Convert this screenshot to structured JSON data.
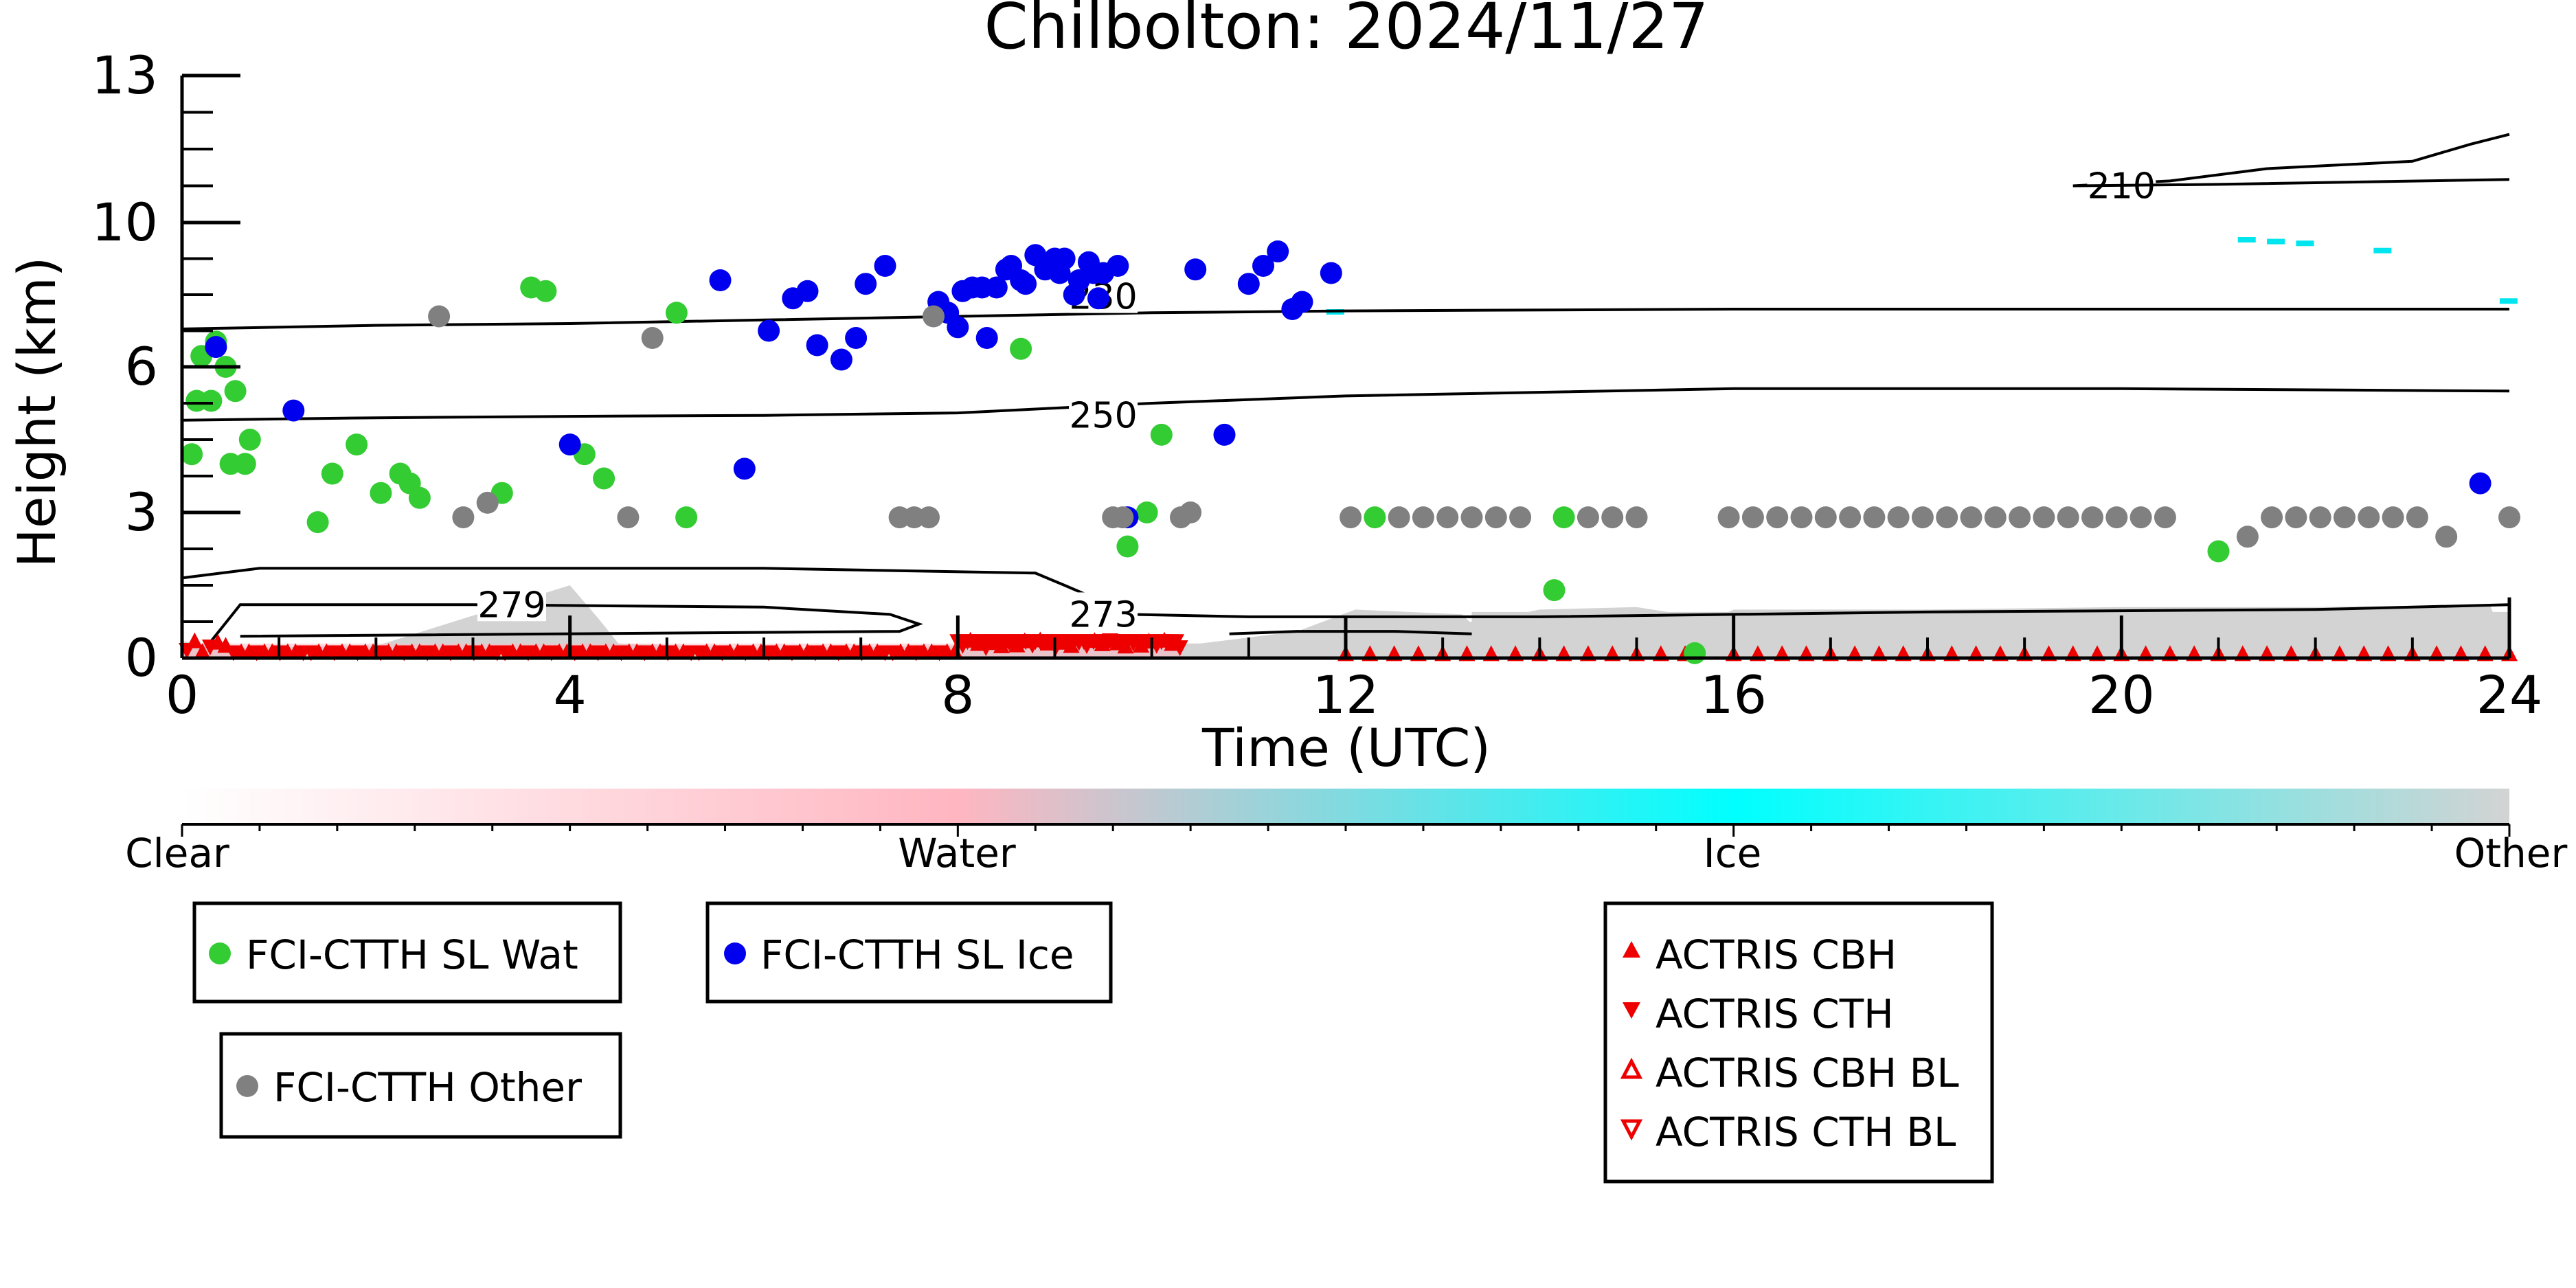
{
  "chart_data": {
    "type": "scatter",
    "title": "Chilbolton: 2024/11/27",
    "xlabel": "Time (UTC)",
    "ylabel": "Height (km)",
    "xlim": [
      0,
      24
    ],
    "ylim": [
      0,
      13
    ],
    "x_ticks": [
      0,
      4,
      8,
      12,
      16,
      20,
      24
    ],
    "y_ticks": [
      0,
      3,
      6,
      10,
      13
    ],
    "y_tick_labels": [
      "0",
      "3",
      "6",
      "10",
      "13"
    ],
    "y_tick_positions": [
      0,
      3,
      6,
      10,
      13
    ],
    "y_scale_note": "non-uniform axis; 3 km and 6 km labels sit at one quarter spacing",
    "colorbar": {
      "labels": [
        "Clear",
        "Water",
        "Ice",
        "Other"
      ],
      "positions": [
        0,
        0.333,
        0.667,
        1.0
      ],
      "colors": {
        "clear": "#ffffff",
        "water": "#ffb6c1",
        "ice": "#00ffff",
        "other": "#d3d3d3"
      }
    },
    "contours": [
      {
        "label": "210",
        "label_x": 20.0,
        "label_y": 10.75,
        "points": [
          [
            19.5,
            10.75
          ],
          [
            20.5,
            10.85
          ],
          [
            21.5,
            11.1
          ],
          [
            23.0,
            11.25
          ],
          [
            23.6,
            11.6
          ],
          [
            24.0,
            11.8
          ]
        ]
      },
      {
        "label": "210",
        "show_label": false,
        "points": [
          [
            19.5,
            10.75
          ],
          [
            21.0,
            10.78
          ],
          [
            24.0,
            10.88
          ]
        ]
      },
      {
        "label": "230",
        "label_x": 9.5,
        "label_y": 7.95,
        "points": [
          [
            0,
            7.05
          ],
          [
            2,
            7.15
          ],
          [
            4,
            7.2
          ],
          [
            6,
            7.3
          ],
          [
            8,
            7.4
          ],
          [
            10,
            7.5
          ],
          [
            12,
            7.55
          ],
          [
            16,
            7.6
          ],
          [
            20,
            7.6
          ],
          [
            24,
            7.6
          ]
        ]
      },
      {
        "label": "250",
        "label_x": 9.5,
        "label_y": 5.0,
        "points": [
          [
            0,
            4.9
          ],
          [
            2,
            4.95
          ],
          [
            4,
            4.98
          ],
          [
            6,
            5.0
          ],
          [
            8,
            5.05
          ],
          [
            9,
            5.15
          ],
          [
            10,
            5.25
          ],
          [
            12,
            5.4
          ],
          [
            16,
            5.55
          ],
          [
            20,
            5.55
          ],
          [
            24,
            5.5
          ]
        ]
      },
      {
        "label": "279",
        "label_x": 3.4,
        "label_y": 1.1,
        "points": [
          [
            0.3,
            0.35
          ],
          [
            0.6,
            1.1
          ],
          [
            3,
            1.1
          ],
          [
            6,
            1.05
          ],
          [
            7.3,
            0.9
          ],
          [
            7.6,
            0.7
          ],
          [
            7.4,
            0.55
          ],
          [
            0.6,
            0.45
          ]
        ]
      },
      {
        "label": "273",
        "label_x": 9.5,
        "label_y": 0.9,
        "points": [
          [
            0,
            1.65
          ],
          [
            0.8,
            1.85
          ],
          [
            3,
            1.85
          ],
          [
            6,
            1.85
          ],
          [
            8.8,
            1.75
          ],
          [
            9.1,
            1.5
          ],
          [
            9.8,
            0.9
          ],
          [
            11,
            0.85
          ],
          [
            14,
            0.85
          ],
          [
            18,
            0.95
          ],
          [
            22,
            1.0
          ],
          [
            24,
            1.1
          ]
        ]
      },
      {
        "label": "",
        "show_label": false,
        "points": [
          [
            10.8,
            0.5
          ],
          [
            11.5,
            0.55
          ],
          [
            12.5,
            0.55
          ],
          [
            13.3,
            0.5
          ]
        ]
      }
    ],
    "legend": {
      "fci": [
        {
          "label": "FCI-CTTH SL Wat",
          "color": "#33cc33",
          "marker": "circle"
        },
        {
          "label": "FCI-CTTH SL Ice",
          "color": "#0000ee",
          "marker": "circle"
        },
        {
          "label": "FCI-CTTH Other",
          "color": "#808080",
          "marker": "circle"
        }
      ],
      "actris": [
        {
          "label": "ACTRIS CBH",
          "color": "#ee0000",
          "marker": "triangle-up"
        },
        {
          "label": "ACTRIS CTH",
          "color": "#ee0000",
          "marker": "triangle-down"
        },
        {
          "label": "ACTRIS CBH BL",
          "color": "#ee0000",
          "marker": "triangle-up-open"
        },
        {
          "label": "ACTRIS CTH BL",
          "color": "#ee0000",
          "marker": "triangle-down-open"
        }
      ]
    },
    "series": [
      {
        "name": "FCI-CTTH SL Wat",
        "color": "#33cc33",
        "points": [
          [
            0.1,
            4.2
          ],
          [
            0.15,
            5.3
          ],
          [
            0.2,
            6.3
          ],
          [
            0.3,
            5.3
          ],
          [
            0.35,
            6.7
          ],
          [
            0.45,
            6.0
          ],
          [
            0.5,
            4.0
          ],
          [
            0.55,
            5.5
          ],
          [
            0.65,
            4.0
          ],
          [
            0.7,
            4.5
          ],
          [
            1.4,
            2.8
          ],
          [
            1.55,
            3.8
          ],
          [
            1.8,
            4.4
          ],
          [
            2.05,
            3.4
          ],
          [
            2.25,
            3.8
          ],
          [
            2.35,
            3.6
          ],
          [
            2.45,
            3.3
          ],
          [
            3.3,
            3.4
          ],
          [
            3.6,
            8.2
          ],
          [
            3.75,
            8.1
          ],
          [
            4.15,
            4.2
          ],
          [
            4.35,
            3.7
          ],
          [
            5.1,
            7.5
          ],
          [
            5.2,
            2.9
          ],
          [
            8.65,
            6.5
          ],
          [
            9.95,
            3.0
          ],
          [
            10.1,
            4.6
          ],
          [
            9.75,
            2.3
          ],
          [
            12.3,
            2.9
          ],
          [
            14.15,
            1.4
          ],
          [
            14.25,
            2.9
          ],
          [
            15.6,
            0.1
          ],
          [
            21.0,
            2.2
          ]
        ]
      },
      {
        "name": "FCI-CTTH SL Ice",
        "color": "#0000ee",
        "points": [
          [
            0.35,
            6.55
          ],
          [
            1.15,
            5.1
          ],
          [
            4.0,
            4.4
          ],
          [
            5.55,
            8.4
          ],
          [
            5.8,
            3.9
          ],
          [
            6.05,
            7.0
          ],
          [
            6.3,
            7.9
          ],
          [
            6.45,
            8.1
          ],
          [
            6.55,
            6.6
          ],
          [
            6.8,
            6.2
          ],
          [
            6.95,
            6.8
          ],
          [
            7.05,
            8.3
          ],
          [
            7.25,
            8.8
          ],
          [
            7.8,
            7.8
          ],
          [
            7.9,
            7.5
          ],
          [
            8.0,
            7.1
          ],
          [
            8.05,
            8.1
          ],
          [
            8.15,
            8.2
          ],
          [
            8.25,
            8.2
          ],
          [
            8.3,
            6.8
          ],
          [
            8.4,
            8.2
          ],
          [
            8.5,
            8.7
          ],
          [
            8.55,
            8.8
          ],
          [
            8.65,
            8.4
          ],
          [
            8.7,
            8.3
          ],
          [
            8.8,
            9.1
          ],
          [
            8.9,
            8.7
          ],
          [
            9.0,
            9.0
          ],
          [
            9.05,
            8.6
          ],
          [
            9.1,
            9.0
          ],
          [
            9.2,
            8.0
          ],
          [
            9.25,
            8.4
          ],
          [
            9.35,
            8.9
          ],
          [
            9.4,
            8.6
          ],
          [
            9.45,
            7.9
          ],
          [
            9.5,
            8.6
          ],
          [
            9.65,
            8.8
          ],
          [
            9.75,
            2.9
          ],
          [
            10.45,
            8.7
          ],
          [
            10.75,
            4.6
          ],
          [
            11.0,
            8.3
          ],
          [
            11.15,
            8.8
          ],
          [
            11.3,
            9.2
          ],
          [
            11.45,
            7.6
          ],
          [
            11.55,
            7.8
          ],
          [
            11.85,
            8.6
          ],
          [
            23.7,
            3.6
          ]
        ]
      },
      {
        "name": "FCI-CTTH Other",
        "color": "#808080",
        "points": [
          [
            2.65,
            7.4
          ],
          [
            2.9,
            2.9
          ],
          [
            3.15,
            3.2
          ],
          [
            4.85,
            6.8
          ],
          [
            4.6,
            2.9
          ],
          [
            7.4,
            2.9
          ],
          [
            7.55,
            2.9
          ],
          [
            7.7,
            2.9
          ],
          [
            7.75,
            7.4
          ],
          [
            9.6,
            2.9
          ],
          [
            9.7,
            2.9
          ],
          [
            10.3,
            2.9
          ],
          [
            10.4,
            3.0
          ],
          [
            12.05,
            2.9
          ],
          [
            12.55,
            2.9
          ],
          [
            12.8,
            2.9
          ],
          [
            13.05,
            2.9
          ],
          [
            13.3,
            2.9
          ],
          [
            13.55,
            2.9
          ],
          [
            13.8,
            2.9
          ],
          [
            14.5,
            2.9
          ],
          [
            14.75,
            2.9
          ],
          [
            15.0,
            2.9
          ],
          [
            15.95,
            2.9
          ],
          [
            16.2,
            2.9
          ],
          [
            16.45,
            2.9
          ],
          [
            16.7,
            2.9
          ],
          [
            16.95,
            2.9
          ],
          [
            17.2,
            2.9
          ],
          [
            17.45,
            2.9
          ],
          [
            17.7,
            2.9
          ],
          [
            17.95,
            2.9
          ],
          [
            18.2,
            2.9
          ],
          [
            18.45,
            2.9
          ],
          [
            18.7,
            2.9
          ],
          [
            18.95,
            2.9
          ],
          [
            19.2,
            2.9
          ],
          [
            19.45,
            2.9
          ],
          [
            19.7,
            2.9
          ],
          [
            19.95,
            2.9
          ],
          [
            20.2,
            2.9
          ],
          [
            20.45,
            2.9
          ],
          [
            21.3,
            2.5
          ],
          [
            21.55,
            2.9
          ],
          [
            21.8,
            2.9
          ],
          [
            22.05,
            2.9
          ],
          [
            22.3,
            2.9
          ],
          [
            22.55,
            2.9
          ],
          [
            22.8,
            2.9
          ],
          [
            23.05,
            2.9
          ],
          [
            23.35,
            2.5
          ],
          [
            24.0,
            2.9
          ]
        ]
      }
    ]
  }
}
